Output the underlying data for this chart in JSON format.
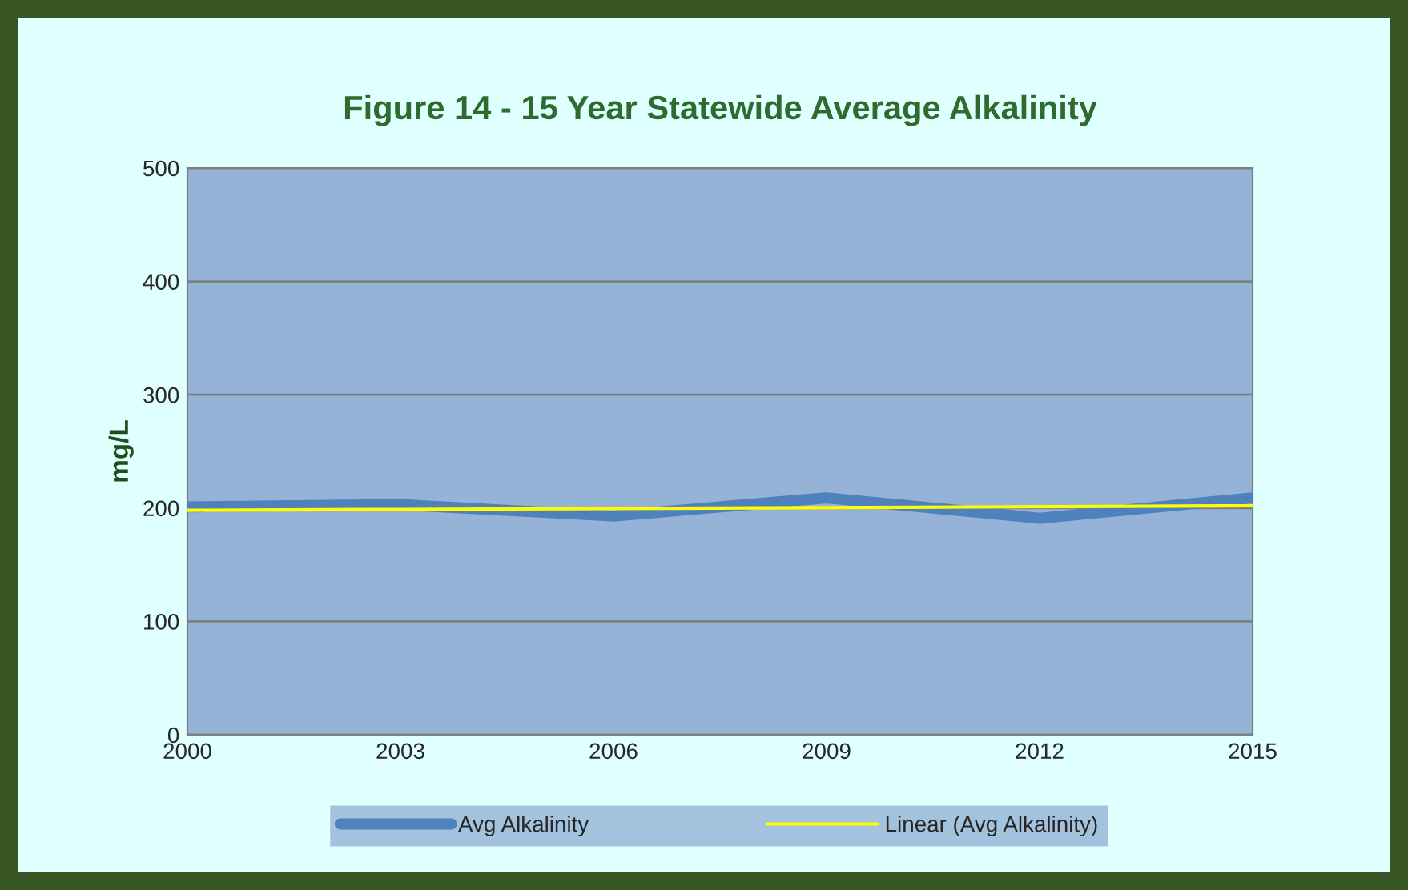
{
  "chart_data": {
    "type": "line",
    "title": "Figure 14 - 15 Year Statewide Average Alkalinity",
    "ylabel": "mg/L",
    "x": [
      2000,
      2003,
      2006,
      2009,
      2012,
      2015
    ],
    "series": [
      {
        "name": "Avg Alkalinity",
        "color": "#4f81bd",
        "values": [
          201,
          203,
          193,
          209,
          191,
          209
        ]
      },
      {
        "name": "Linear (Avg Alkalinity)",
        "color": "#ffff00",
        "x": [
          2000,
          2015
        ],
        "values": [
          198,
          202
        ]
      }
    ],
    "xlim": [
      2000,
      2015
    ],
    "xticks": [
      2000,
      2003,
      2006,
      2009,
      2012,
      2015
    ],
    "ylim": [
      0,
      500
    ],
    "yticks": [
      0,
      100,
      200,
      300,
      400,
      500
    ],
    "grid": "y",
    "legend": "bottom",
    "marker": "none",
    "line_style": "solid"
  }
}
